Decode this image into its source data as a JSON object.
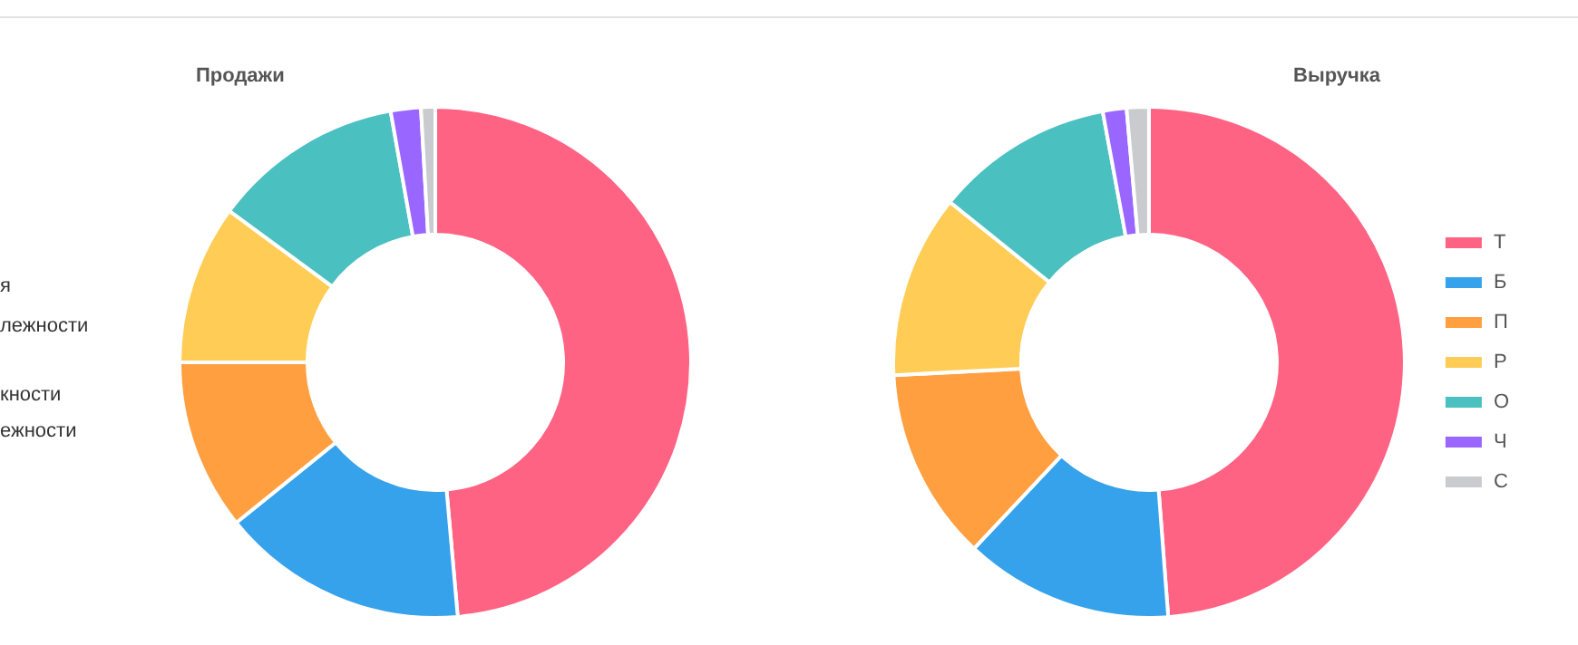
{
  "chart_data": [
    {
      "type": "donut",
      "title": "Продажи",
      "categories": [
        null,
        null,
        null,
        null,
        null,
        null,
        null
      ],
      "values": [
        48.6,
        15.6,
        10.8,
        10.1,
        12.1,
        1.9,
        0.9
      ],
      "colors": [
        "#ff6384",
        "#36a2eb",
        "#ff9f40",
        "#ffcd56",
        "#4bc0c0",
        "#9966ff",
        "#c9cbcf"
      ],
      "annotations": [
        "я",
        "лежности",
        "кности",
        "ежности"
      ]
    },
    {
      "type": "donut",
      "title": "Выручка",
      "categories": [
        "Т",
        "Б",
        "П",
        "Р",
        "О",
        "Ч",
        "С"
      ],
      "values": [
        48.8,
        13.2,
        12.2,
        11.6,
        11.3,
        1.5,
        1.4
      ],
      "colors": [
        "#ff6384",
        "#36a2eb",
        "#ff9f40",
        "#ffcd56",
        "#4bc0c0",
        "#9966ff",
        "#c9cbcf"
      ],
      "legend": "right"
    }
  ]
}
